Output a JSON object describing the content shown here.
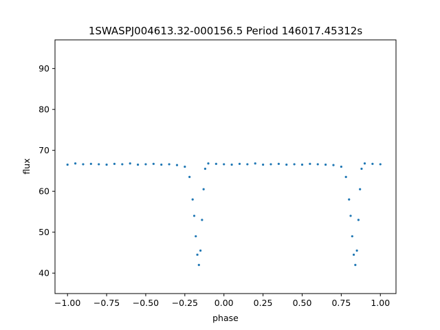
{
  "chart_data": {
    "type": "scatter",
    "title": "1SWASPJ004613.32-000156.5 Period 146017.45312s",
    "xlabel": "phase",
    "ylabel": "flux",
    "xlim": [
      -1.08,
      1.1
    ],
    "ylim": [
      35,
      97
    ],
    "xticks": [
      -1.0,
      -0.75,
      -0.5,
      -0.25,
      0.0,
      0.25,
      0.5,
      0.75,
      1.0
    ],
    "xtick_labels": [
      "−1.00",
      "−0.75",
      "−0.50",
      "−0.25",
      "0.00",
      "0.25",
      "0.50",
      "0.75",
      "1.00"
    ],
    "yticks": [
      40,
      50,
      60,
      70,
      80,
      90
    ],
    "ytick_labels": [
      "40",
      "50",
      "60",
      "70",
      "80",
      "90"
    ],
    "grid": false,
    "marker_color": "#1f77b4",
    "series": [
      {
        "x": [
          -1.0,
          -0.95,
          -0.9,
          -0.85,
          -0.8,
          -0.75,
          -0.7,
          -0.65,
          -0.6,
          -0.55,
          -0.5,
          -0.45,
          -0.4,
          -0.35,
          -0.3,
          -0.25,
          -0.22,
          -0.2,
          -0.19,
          -0.18,
          -0.17,
          -0.16,
          -0.15,
          -0.14,
          -0.13,
          -0.12,
          -0.1,
          -0.05,
          0.0,
          0.05,
          0.1,
          0.15,
          0.2,
          0.25,
          0.3,
          0.35,
          0.4,
          0.45,
          0.5,
          0.55,
          0.6,
          0.65,
          0.7,
          0.75,
          0.78,
          0.8,
          0.81,
          0.82,
          0.83,
          0.84,
          0.85,
          0.86,
          0.87,
          0.88,
          0.9,
          0.95,
          1.0
        ],
        "y": [
          66.5,
          66.8,
          66.6,
          66.7,
          66.6,
          66.5,
          66.7,
          66.6,
          66.8,
          66.5,
          66.6,
          66.7,
          66.5,
          66.6,
          66.4,
          66.0,
          63.5,
          58.0,
          54.0,
          49.0,
          44.5,
          42.0,
          45.5,
          53.0,
          60.5,
          65.5,
          66.8,
          66.7,
          66.6,
          66.5,
          66.7,
          66.6,
          66.8,
          66.5,
          66.6,
          66.7,
          66.5,
          66.6,
          66.5,
          66.7,
          66.6,
          66.5,
          66.4,
          66.0,
          63.5,
          58.0,
          54.0,
          49.0,
          44.5,
          42.0,
          45.5,
          53.0,
          60.5,
          65.5,
          66.8,
          66.7,
          66.6
        ]
      }
    ]
  }
}
